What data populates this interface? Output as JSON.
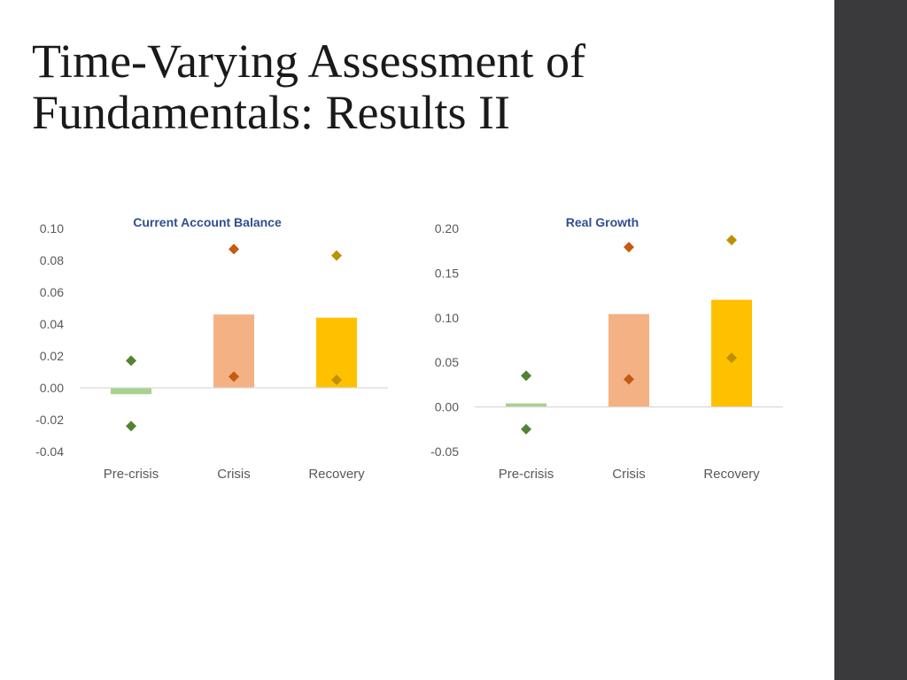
{
  "slide": {
    "title_lines": [
      "Time-Varying Assessment of",
      "Fundamentals: Results II"
    ]
  },
  "colors": {
    "sidebar": "#3a3a3c",
    "pre_crisis": "#a9d18e",
    "crisis": "#f4b183",
    "recovery": "#ffc000",
    "marker_green": "#548235",
    "marker_orange": "#c55a11",
    "marker_gold": "#bf9000",
    "axis_line": "#d9d9d9"
  },
  "chart_data": [
    {
      "type": "bar",
      "title": "Current Account  Balance",
      "categories": [
        "Pre-crisis",
        "Crisis",
        "Recovery"
      ],
      "values": [
        -0.004,
        0.046,
        0.044
      ],
      "markers_high": [
        0.017,
        0.087,
        0.083
      ],
      "markers_low": [
        -0.024,
        0.007,
        0.005
      ],
      "ylim": [
        -0.04,
        0.1
      ],
      "yticks": [
        "0.10",
        "0.08",
        "0.06",
        "0.04",
        "0.02",
        "0.00",
        "-0.02",
        "-0.04"
      ],
      "grid": false,
      "legend": "none"
    },
    {
      "type": "bar",
      "title": "Real Growth",
      "categories": [
        "Pre-crisis",
        "Crisis",
        "Recovery"
      ],
      "values": [
        0.004,
        0.104,
        0.12
      ],
      "markers_high": [
        0.035,
        0.179,
        0.187
      ],
      "markers_low": [
        -0.025,
        0.031,
        0.055
      ],
      "ylim": [
        -0.05,
        0.2
      ],
      "yticks": [
        "0.20",
        "0.15",
        "0.10",
        "0.05",
        "0.00",
        "-0.05"
      ],
      "grid": false,
      "legend": "none"
    }
  ]
}
